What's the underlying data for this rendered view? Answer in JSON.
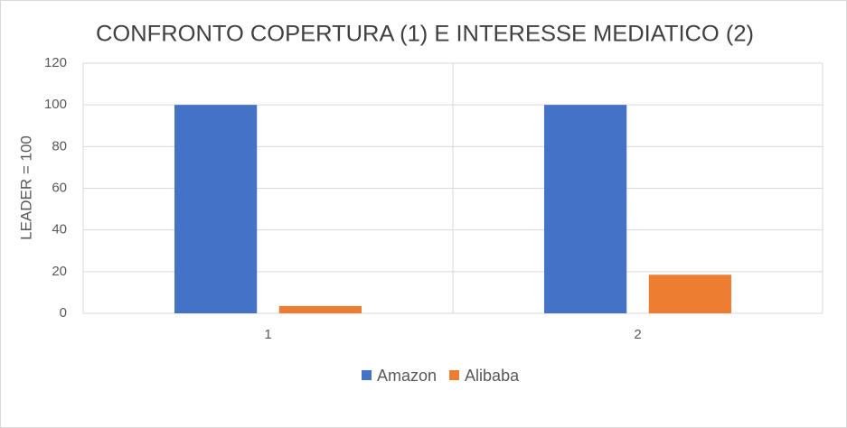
{
  "chart_data": {
    "type": "bar",
    "title": "CONFRONTO COPERTURA (1) E INTERESSE MEDIATICO (2)",
    "y_label": "LEADER = 100",
    "categories": [
      "1",
      "2"
    ],
    "series": [
      {
        "name": "Amazon",
        "color": "#4472c4",
        "values": [
          100,
          100
        ]
      },
      {
        "name": "Alibaba",
        "color": "#ed7d31",
        "values": [
          3.5,
          18.5
        ]
      }
    ],
    "ylim": [
      0,
      120
    ],
    "yticks": [
      0,
      20,
      40,
      60,
      80,
      100,
      120
    ],
    "grid": true,
    "legend": "bottom"
  }
}
